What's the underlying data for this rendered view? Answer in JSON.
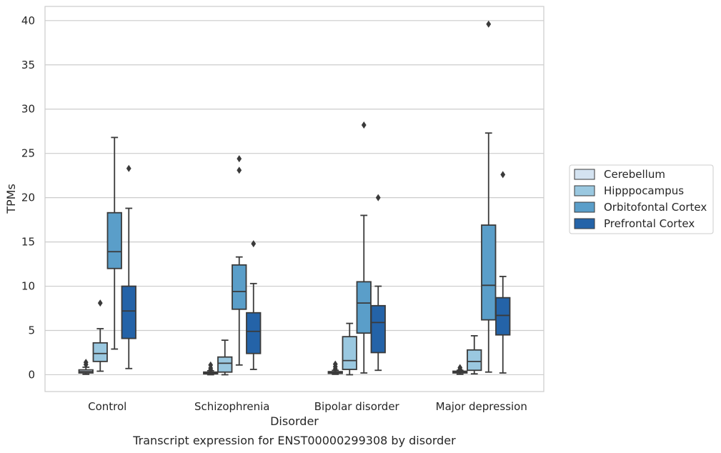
{
  "chart_data": {
    "type": "box",
    "title": "",
    "caption": "Transcript expression for ENST00000299308 by disorder",
    "xlabel": "Disorder",
    "ylabel": "TPMs",
    "ylim": [
      -1.9,
      41.6
    ],
    "yticks": [
      0,
      5,
      10,
      15,
      20,
      25,
      30,
      35,
      40
    ],
    "grid": true,
    "legend_position": "right",
    "categories": [
      "Control",
      "Schizophrenia",
      "Bipolar disorder",
      "Major depression"
    ],
    "series": [
      {
        "name": "Cerebellum",
        "color": "#d4e3f1",
        "boxes": [
          {
            "whislo": 0.05,
            "q1": 0.2,
            "med": 0.35,
            "q3": 0.55,
            "whishi": 0.85,
            "fliers": [
              1.15,
              1.4
            ]
          },
          {
            "whislo": 0.0,
            "q1": 0.1,
            "med": 0.2,
            "q3": 0.3,
            "whishi": 0.45,
            "fliers": [
              0.55,
              0.75,
              1.1
            ]
          },
          {
            "whislo": 0.05,
            "q1": 0.15,
            "med": 0.25,
            "q3": 0.35,
            "whishi": 0.5,
            "fliers": [
              0.65,
              0.9,
              1.2
            ]
          },
          {
            "whislo": 0.05,
            "q1": 0.2,
            "med": 0.3,
            "q3": 0.4,
            "whishi": 0.5,
            "fliers": [
              0.6,
              0.8
            ]
          }
        ]
      },
      {
        "name": "Hipppocampus",
        "color": "#9ac8e0",
        "boxes": [
          {
            "whislo": 0.4,
            "q1": 1.5,
            "med": 2.4,
            "q3": 3.6,
            "whishi": 5.2,
            "fliers": [
              8.1
            ]
          },
          {
            "whislo": 0.0,
            "q1": 0.3,
            "med": 1.3,
            "q3": 2.0,
            "whishi": 3.9,
            "fliers": []
          },
          {
            "whislo": 0.0,
            "q1": 0.6,
            "med": 1.6,
            "q3": 4.3,
            "whishi": 5.8,
            "fliers": []
          },
          {
            "whislo": 0.1,
            "q1": 0.5,
            "med": 1.5,
            "q3": 2.8,
            "whishi": 4.4,
            "fliers": []
          }
        ]
      },
      {
        "name": "Orbitofontal Cortex",
        "color": "#5a9ec9",
        "boxes": [
          {
            "whislo": 2.9,
            "q1": 12.0,
            "med": 13.9,
            "q3": 18.3,
            "whishi": 26.8,
            "fliers": []
          },
          {
            "whislo": 1.1,
            "q1": 7.4,
            "med": 9.4,
            "q3": 12.4,
            "whishi": 13.3,
            "fliers": [
              23.1,
              24.4
            ]
          },
          {
            "whislo": 0.2,
            "q1": 4.7,
            "med": 8.1,
            "q3": 10.5,
            "whishi": 18.0,
            "fliers": [
              28.2
            ]
          },
          {
            "whislo": 0.3,
            "q1": 6.2,
            "med": 10.1,
            "q3": 16.9,
            "whishi": 27.3,
            "fliers": [
              39.6
            ]
          }
        ]
      },
      {
        "name": "Prefrontal Cortex",
        "color": "#2463a8",
        "boxes": [
          {
            "whislo": 0.7,
            "q1": 4.1,
            "med": 7.2,
            "q3": 10.0,
            "whishi": 18.8,
            "fliers": [
              23.3
            ]
          },
          {
            "whislo": 0.6,
            "q1": 2.4,
            "med": 4.9,
            "q3": 7.0,
            "whishi": 10.3,
            "fliers": [
              14.8
            ]
          },
          {
            "whislo": 0.5,
            "q1": 2.5,
            "med": 5.9,
            "q3": 7.8,
            "whishi": 10.0,
            "fliers": [
              20.0
            ]
          },
          {
            "whislo": 0.2,
            "q1": 4.5,
            "med": 6.7,
            "q3": 8.7,
            "whishi": 11.1,
            "fliers": [
              22.6
            ]
          }
        ]
      }
    ]
  }
}
